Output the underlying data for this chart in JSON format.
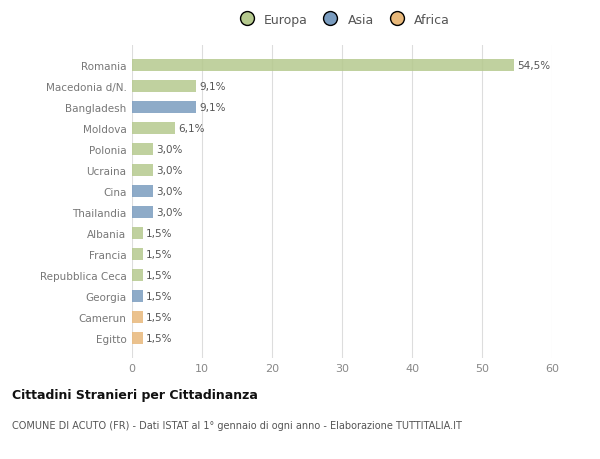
{
  "countries": [
    "Romania",
    "Macedonia d/N.",
    "Bangladesh",
    "Moldova",
    "Polonia",
    "Ucraina",
    "Cina",
    "Thailandia",
    "Albania",
    "Francia",
    "Repubblica Ceca",
    "Georgia",
    "Camerun",
    "Egitto"
  ],
  "values": [
    54.5,
    9.1,
    9.1,
    6.1,
    3.0,
    3.0,
    3.0,
    3.0,
    1.5,
    1.5,
    1.5,
    1.5,
    1.5,
    1.5
  ],
  "labels": [
    "54,5%",
    "9,1%",
    "9,1%",
    "6,1%",
    "3,0%",
    "3,0%",
    "3,0%",
    "3,0%",
    "1,5%",
    "1,5%",
    "1,5%",
    "1,5%",
    "1,5%",
    "1,5%"
  ],
  "continents": [
    "Europa",
    "Europa",
    "Asia",
    "Europa",
    "Europa",
    "Europa",
    "Asia",
    "Asia",
    "Europa",
    "Europa",
    "Europa",
    "Asia",
    "Africa",
    "Africa"
  ],
  "continent_colors": {
    "Europa": "#b5c98e",
    "Asia": "#7a9cbf",
    "Africa": "#e8b87a"
  },
  "legend_labels": [
    "Europa",
    "Asia",
    "Africa"
  ],
  "legend_colors": [
    "#b5c98e",
    "#7a9cbf",
    "#e8b87a"
  ],
  "title": "Cittadini Stranieri per Cittadinanza",
  "subtitle": "COMUNE DI ACUTO (FR) - Dati ISTAT al 1° gennaio di ogni anno - Elaborazione TUTTITALIA.IT",
  "xlim": [
    0,
    60
  ],
  "xticks": [
    0,
    10,
    20,
    30,
    40,
    50,
    60
  ],
  "bg_color": "#ffffff",
  "grid_color": "#dddddd",
  "bar_alpha": 0.85,
  "bar_height": 0.55
}
